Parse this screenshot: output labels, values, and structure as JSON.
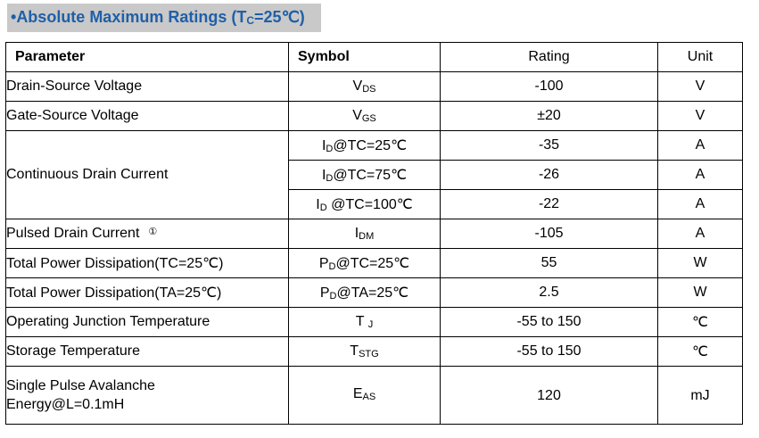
{
  "title": {
    "bullet": "•",
    "text": "Absolute Maximum Ratings",
    "condition_open": "(T",
    "condition_sub": "C",
    "condition_close": "=25℃)"
  },
  "table": {
    "headers": {
      "parameter": "Parameter",
      "symbol": "Symbol",
      "rating": "Rating",
      "unit": "Unit"
    },
    "rows": [
      {
        "parameter": "Drain-Source Voltage",
        "sym_main": "V",
        "sym_sub": "DS",
        "sym_rest": "",
        "rating": "-100",
        "unit": "V"
      },
      {
        "parameter": "Gate-Source Voltage",
        "sym_main": "V",
        "sym_sub": "GS",
        "sym_rest": "",
        "rating": "±20",
        "unit": "V"
      },
      {
        "parameter": "Continuous Drain Current",
        "sym_main": "I",
        "sym_sub": "D",
        "sym_rest": "@TC=25℃",
        "rating": "-35",
        "unit": "A"
      },
      {
        "parameter": "",
        "sym_main": "I",
        "sym_sub": "D",
        "sym_rest": "@TC=75℃",
        "rating": "-26",
        "unit": "A"
      },
      {
        "parameter": "",
        "sym_main": "I",
        "sym_sub": "D",
        "sym_rest": " @TC=100℃",
        "rating": "-22",
        "unit": "A"
      },
      {
        "parameter": "Pulsed Drain Current",
        "footnote": "①",
        "sym_main": "I",
        "sym_sub": "DM",
        "sym_rest": "",
        "rating": "-105",
        "unit": "A"
      },
      {
        "parameter": "Total Power Dissipation(TC=25℃)",
        "sym_main": "P",
        "sym_sub": "D",
        "sym_rest": "@TC=25℃",
        "rating": "55",
        "unit": "W"
      },
      {
        "parameter": "Total Power Dissipation(TA=25℃)",
        "sym_main": "P",
        "sym_sub": "D",
        "sym_rest": "@TA=25℃",
        "rating": "2.5",
        "unit": "W"
      },
      {
        "parameter": "Operating Junction Temperature",
        "sym_main": "T",
        "sym_sub": "J",
        "sym_rest": "",
        "rating": "-55 to 150",
        "unit": "℃"
      },
      {
        "parameter": "Storage Temperature",
        "sym_main": "T",
        "sym_sub": "STG",
        "sym_rest": "",
        "rating": "-55 to 150",
        "unit": "℃"
      },
      {
        "parameter_line1": "Single Pulse Avalanche",
        "parameter_line2": "Energy@L=0.1mH",
        "sym_main": "E",
        "sym_sub": "AS",
        "sym_rest": "",
        "rating": "120",
        "unit": "mJ"
      }
    ]
  },
  "colors": {
    "title_text": "#1f5fa8",
    "title_background": "#c9c9c9",
    "border": "#000000"
  }
}
